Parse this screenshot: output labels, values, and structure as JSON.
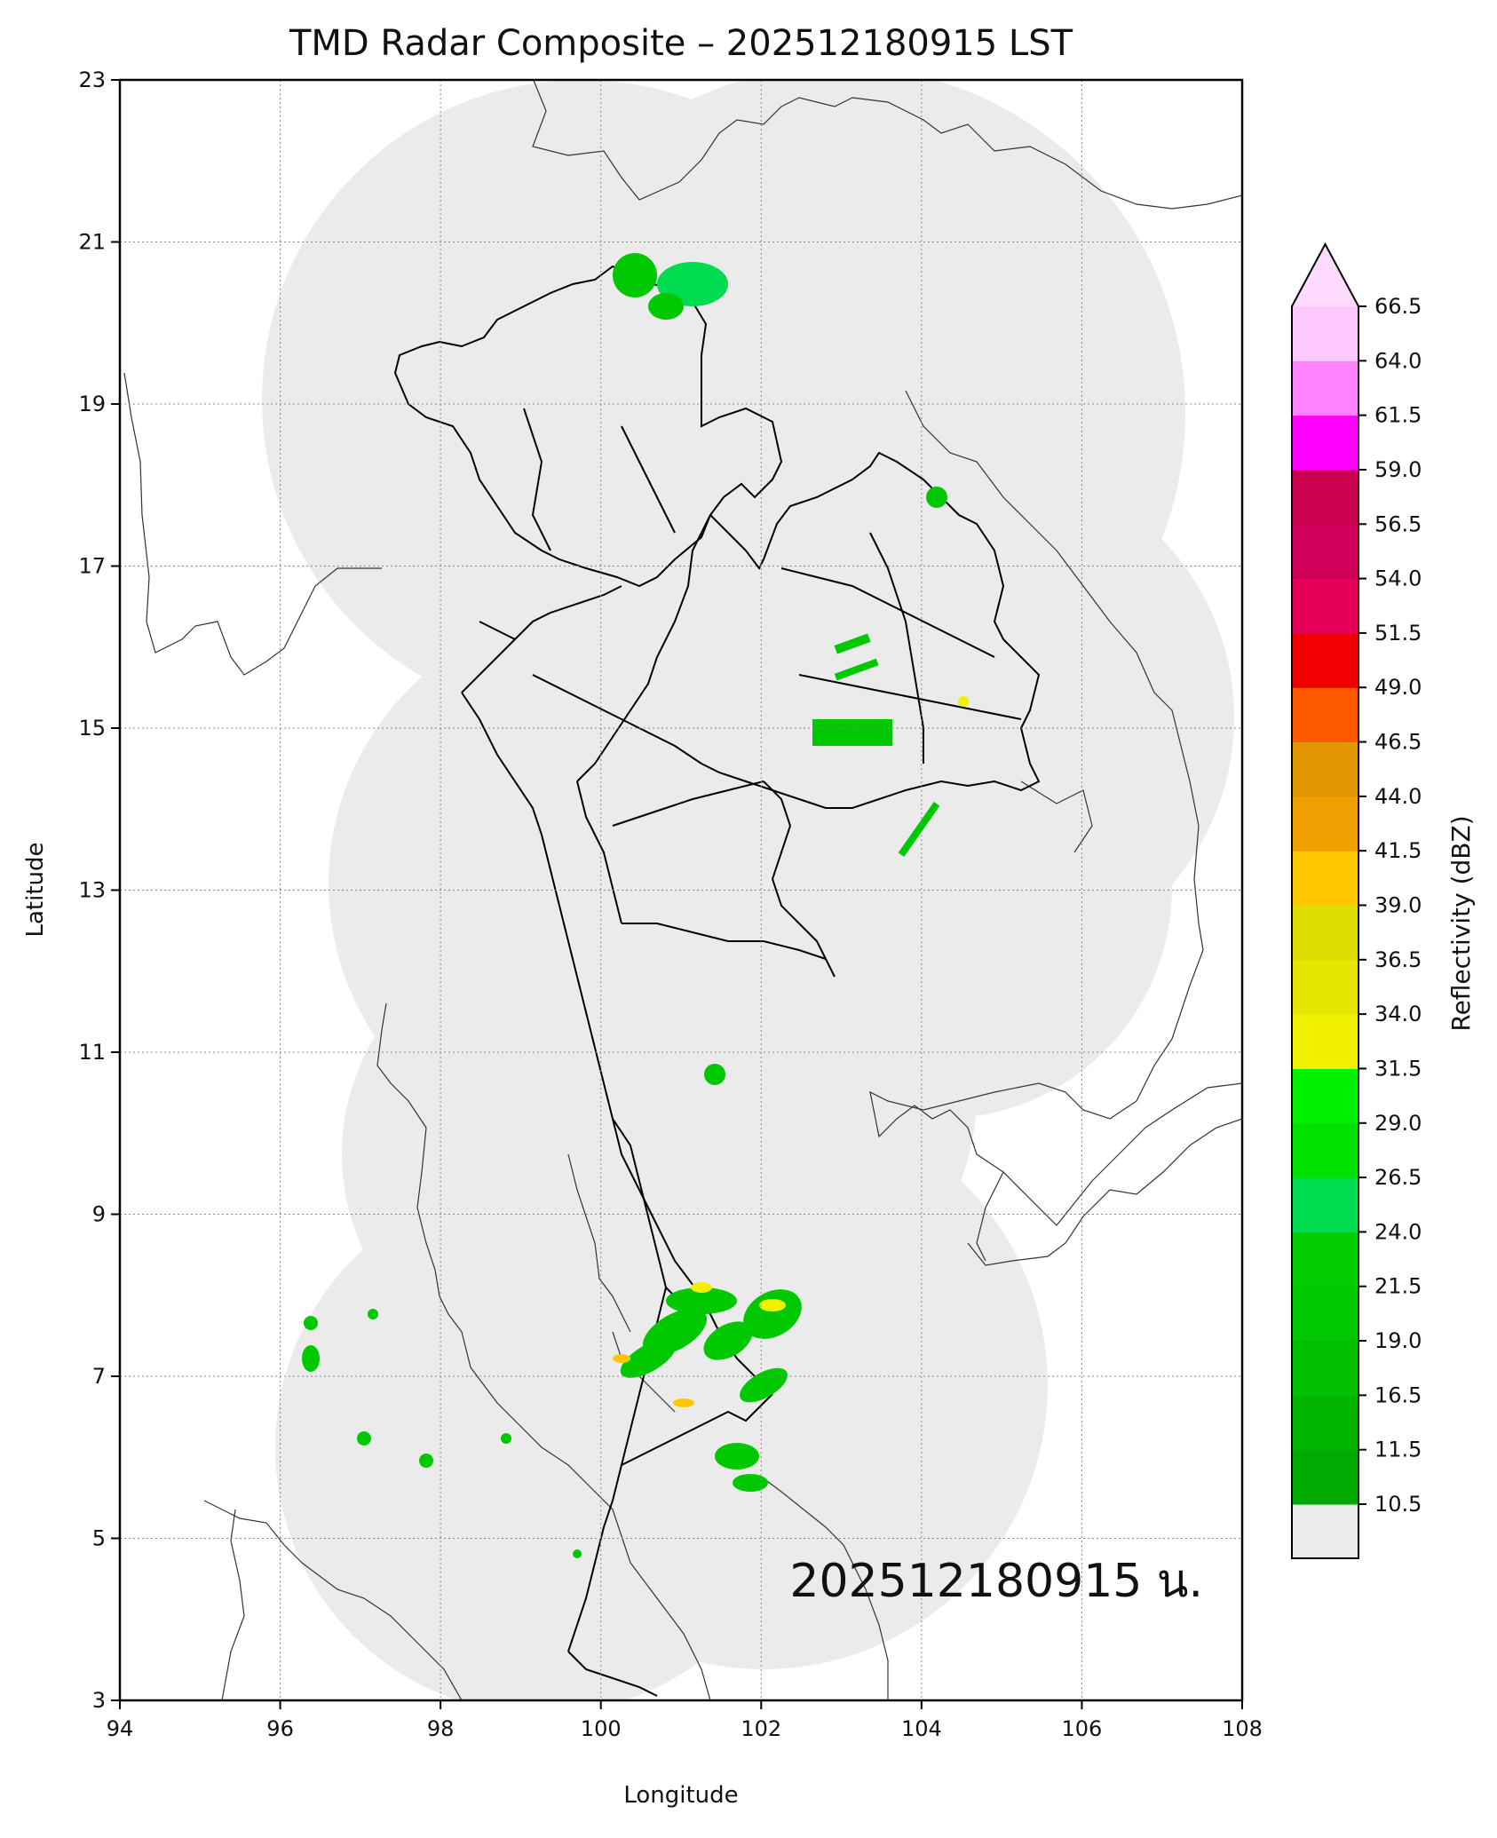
{
  "title": "TMD Radar Composite – 202512180915 LST",
  "map": {
    "xlabel": "Longitude",
    "ylabel": "Latitude",
    "xlim": [
      94,
      108
    ],
    "ylim": [
      3,
      23
    ],
    "x_ticks": [
      "94",
      "96",
      "98",
      "100",
      "102",
      "104",
      "106",
      "108"
    ],
    "y_ticks": [
      "3",
      "5",
      "7",
      "9",
      "11",
      "13",
      "15",
      "17",
      "19",
      "21",
      "23"
    ],
    "grid": true,
    "coverage_color": "#ebebeb",
    "timestamp_label": "202512180915 น."
  },
  "colorbar": {
    "label": "Reflectivity (dBZ)",
    "tick_labels": [
      "10.5",
      "11.5",
      "16.5",
      "19.0",
      "21.5",
      "24.0",
      "26.5",
      "29.0",
      "31.5",
      "34.0",
      "36.5",
      "39.0",
      "41.5",
      "44.0",
      "46.5",
      "49.0",
      "51.5",
      "54.0",
      "56.5",
      "59.0",
      "61.5",
      "64.0",
      "66.5"
    ],
    "under_color": "#ebebeb",
    "extend": "max",
    "extend_color": "#ffdcff",
    "colors": [
      "#00aa00",
      "#00b400",
      "#00be00",
      "#00c800",
      "#00cd00",
      "#00dc50",
      "#00e100",
      "#00f000",
      "#f0f000",
      "#e6e600",
      "#dcdc00",
      "#ffc800",
      "#f0a000",
      "#e09600",
      "#ff5a00",
      "#f00000",
      "#e6005a",
      "#d2005a",
      "#cc0050",
      "#ff00ff",
      "#ff82ff",
      "#ffc8ff",
      "#ffdcff"
    ]
  }
}
